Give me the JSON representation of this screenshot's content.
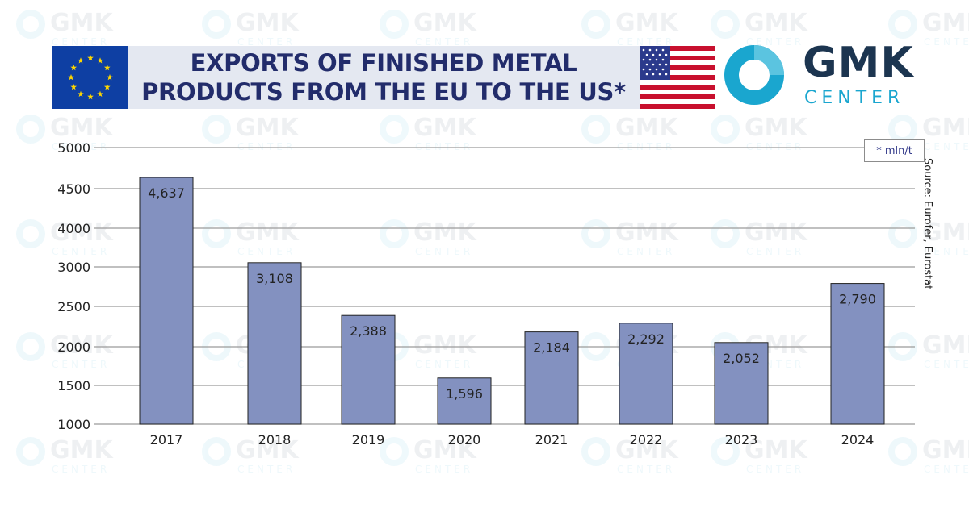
{
  "header": {
    "title_line1": "EXPORTS OF FINISHED METAL",
    "title_line2": "PRODUCTS FROM THE EU TO THE US*",
    "logo_main": "GMK",
    "logo_sub": "CENTER",
    "watermark": "GMK CENTER"
  },
  "unit_note": "* mln/t",
  "source_note": "Source: Eurofer, Eurostat",
  "colors": {
    "bar_fill": "#8391c0",
    "bar_stroke": "#222222",
    "title": "#222c6b",
    "eu_blue": "#0e3fa3",
    "logo_dark": "#1c3550",
    "logo_cyan": "#1aa6cf",
    "grid": "#9a9a9a"
  },
  "chart_data": {
    "type": "bar",
    "categories": [
      "2017",
      "2018",
      "2019",
      "2020",
      "2021",
      "2022",
      "2023",
      "2024"
    ],
    "values": [
      4637,
      3108,
      2388,
      1596,
      2184,
      2292,
      2052,
      2790
    ],
    "value_labels": [
      "4,637",
      "3,108",
      "2,388",
      "1,596",
      "2,184",
      "2,292",
      "2,052",
      "2,790"
    ],
    "yticks": [
      1000,
      1500,
      2000,
      2500,
      3000,
      4000,
      4500,
      5000
    ],
    "grid": true,
    "title": "EXPORTS OF FINISHED METAL PRODUCTS FROM THE EU TO THE US*"
  }
}
